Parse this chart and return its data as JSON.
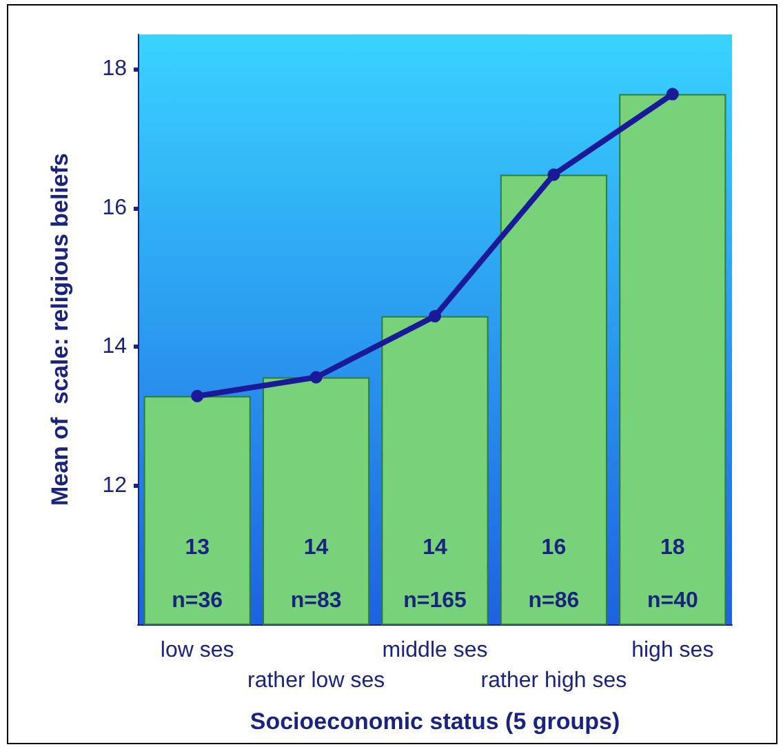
{
  "chart_data": {
    "type": "bar",
    "xlabel": "Socioeconomic status (5 groups)",
    "ylabel": "Mean of  scale: religious beliefs",
    "categories": [
      "low ses",
      "rather low ses",
      "middle ses",
      "rather high ses",
      "high ses"
    ],
    "series": [
      {
        "color": "#77d27a",
        "values": [
          13.29,
          13.56,
          14.44,
          16.48,
          17.64
        ],
        "value_labels": [
          "13",
          "14",
          "14",
          "16",
          "18"
        ]
      },
      {
        "type": "line",
        "color": "#1a1a99",
        "values": [
          13.29,
          13.56,
          14.44,
          16.48,
          17.64
        ]
      }
    ],
    "annotations": [
      "n=36",
      "n=83",
      "n=165",
      "n=86",
      "n=40"
    ],
    "ylim": [
      10,
      18.5
    ],
    "yticks": [
      12,
      14,
      16,
      18
    ],
    "grid": false,
    "marker": "circle",
    "line_style": "solid"
  }
}
